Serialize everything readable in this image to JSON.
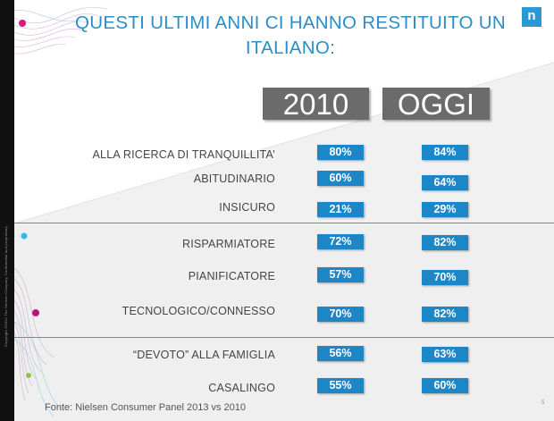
{
  "title": {
    "line1": "QUESTI ULTIMI ANNI CI HANNO RESTITUITO UN",
    "line2": "ITALIANO:"
  },
  "logo": "n",
  "columns": [
    "2010",
    "OGGI"
  ],
  "rows": [
    {
      "label": "ALLA RICERCA DI TRANQUILLITA’",
      "v2010": "80%",
      "oggi": "84%"
    },
    {
      "label": "ABITUDINARIO",
      "v2010": "60%",
      "oggi": "64%"
    },
    {
      "label": "INSICURO",
      "v2010": "21%",
      "oggi": "29%"
    },
    {
      "label": "RISPARMIATORE",
      "v2010": "72%",
      "oggi": "82%"
    },
    {
      "label": "PIANIFICATORE",
      "v2010": "57%",
      "oggi": "70%"
    },
    {
      "label": "TECNOLOGICO/CONNESSO",
      "v2010": "70%",
      "oggi": "82%"
    },
    {
      "label": "“DEVOTO” ALLA FAMIGLIA",
      "v2010": "56%",
      "oggi": "63%"
    },
    {
      "label": "CASALINGO",
      "v2010": "55%",
      "oggi": "60%"
    }
  ],
  "footer": "Fonte: Nielsen Consumer Panel 2013 vs 2010",
  "page_number": "5",
  "copyright": "Copyright ©2012 The Nielsen Company. Confidential and proprietary.",
  "colors": {
    "title": "#2a8ec8",
    "value_box": "#1d86c6",
    "year_box": "#6b6b6b",
    "divider": "#29a4e0",
    "logo": "#2a9ad6"
  }
}
